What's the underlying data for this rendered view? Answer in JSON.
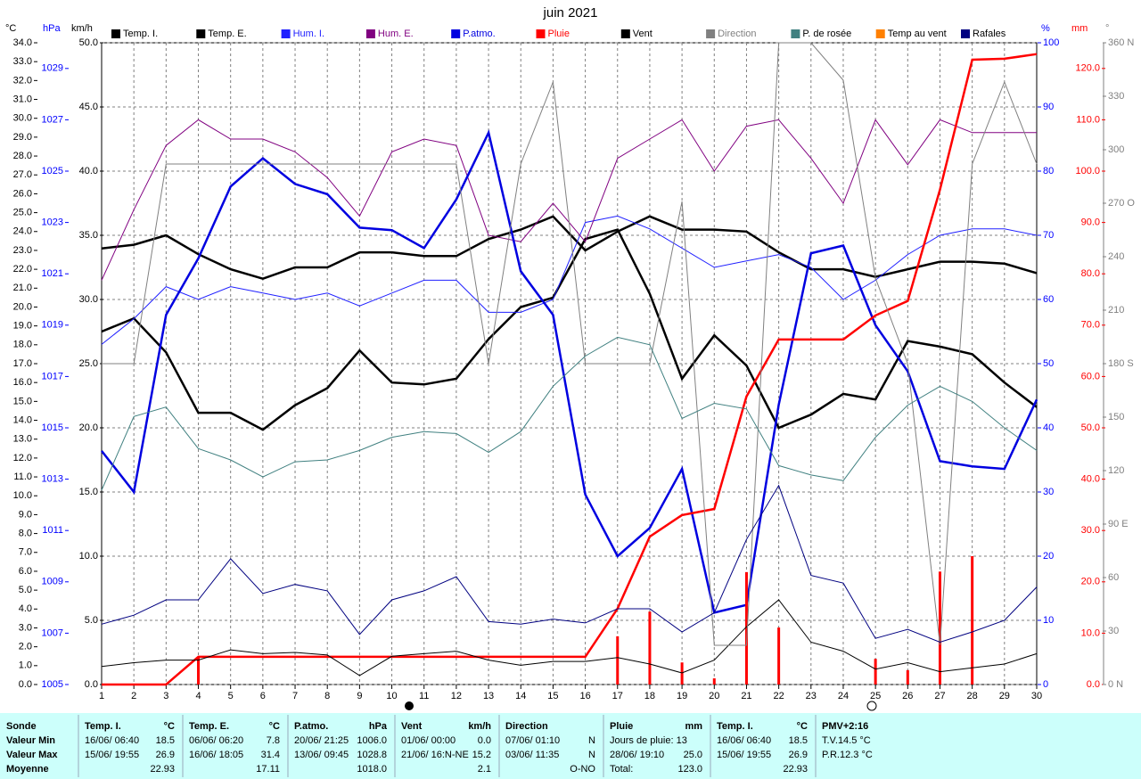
{
  "chart_data": {
    "type": "line",
    "title": "juin 2021",
    "categories": [
      "1",
      "2",
      "3",
      "4",
      "5",
      "6",
      "7",
      "8",
      "9",
      "10",
      "11",
      "12",
      "13",
      "14",
      "15",
      "16",
      "17",
      "18",
      "19",
      "20",
      "21",
      "22",
      "23",
      "24",
      "25",
      "26",
      "27",
      "28",
      "29",
      "30"
    ],
    "grid": true,
    "axes": {
      "temp": {
        "label": "°C",
        "color": "#000000",
        "lim": [
          0,
          34
        ],
        "ticks": [
          {
            "value": 0,
            "label": "0.0"
          },
          {
            "value": 1,
            "label": "1.0"
          },
          {
            "value": 2,
            "label": "2.0"
          },
          {
            "value": 3,
            "label": "3.0"
          },
          {
            "value": 4,
            "label": "4.0"
          },
          {
            "value": 5,
            "label": "5.0"
          },
          {
            "value": 6,
            "label": "6.0"
          },
          {
            "value": 7,
            "label": "7.0"
          },
          {
            "value": 8,
            "label": "8.0"
          },
          {
            "value": 9,
            "label": "9.0"
          },
          {
            "value": 10,
            "label": "10.0"
          },
          {
            "value": 11,
            "label": "11.0"
          },
          {
            "value": 12,
            "label": "12.0"
          },
          {
            "value": 13,
            "label": "13.0"
          },
          {
            "value": 14,
            "label": "14.0"
          },
          {
            "value": 15,
            "label": "15.0"
          },
          {
            "value": 16,
            "label": "16.0"
          },
          {
            "value": 17,
            "label": "17.0"
          },
          {
            "value": 18,
            "label": "18.0"
          },
          {
            "value": 19,
            "label": "19.0"
          },
          {
            "value": 20,
            "label": "20.0"
          },
          {
            "value": 21,
            "label": "21.0"
          },
          {
            "value": 22,
            "label": "22.0"
          },
          {
            "value": 23,
            "label": "23.0"
          },
          {
            "value": 24,
            "label": "24.0"
          },
          {
            "value": 25,
            "label": "25.0"
          },
          {
            "value": 26,
            "label": "26.0"
          },
          {
            "value": 27,
            "label": "27.0"
          },
          {
            "value": 28,
            "label": "28.0"
          },
          {
            "value": 29,
            "label": "29.0"
          },
          {
            "value": 30,
            "label": "30.0"
          },
          {
            "value": 31,
            "label": "31.0"
          },
          {
            "value": 32,
            "label": "32.0"
          },
          {
            "value": 33,
            "label": "33.0"
          },
          {
            "value": 34,
            "label": "34.0"
          }
        ]
      },
      "hpa": {
        "label": "hPa",
        "color": "#0000ff",
        "lim": [
          1005,
          1030
        ],
        "ticks": [
          1005,
          1007,
          1009,
          1011,
          1013,
          1015,
          1017,
          1019,
          1021,
          1023,
          1025,
          1027,
          1029
        ]
      },
      "kmh": {
        "label": "km/h",
        "color": "#000000",
        "lim": [
          0,
          50
        ],
        "ticks": [
          {
            "value": 0,
            "label": "0.0"
          },
          {
            "value": 5,
            "label": "5.0"
          },
          {
            "value": 10,
            "label": "10.0"
          },
          {
            "value": 15,
            "label": "15.0"
          },
          {
            "value": 20,
            "label": "20.0"
          },
          {
            "value": 25,
            "label": "25.0"
          },
          {
            "value": 30,
            "label": "30.0"
          },
          {
            "value": 35,
            "label": "35.0"
          },
          {
            "value": 40,
            "label": "40.0"
          },
          {
            "value": 45,
            "label": "45.0"
          },
          {
            "value": 50,
            "label": "50.0"
          }
        ]
      },
      "pct": {
        "label": "%",
        "color": "#0000ff",
        "lim": [
          0,
          100
        ],
        "ticks": [
          0,
          10,
          20,
          30,
          40,
          50,
          60,
          70,
          80,
          90,
          100
        ]
      },
      "mm": {
        "label": "mm",
        "color": "#ff0000",
        "lim": [
          0,
          125
        ],
        "ticks": [
          {
            "value": 0,
            "label": "0.0"
          },
          {
            "value": 10,
            "label": "10.0"
          },
          {
            "value": 20,
            "label": "20.0"
          },
          {
            "value": 30,
            "label": "30.0"
          },
          {
            "value": 40,
            "label": "40.0"
          },
          {
            "value": 50,
            "label": "50.0"
          },
          {
            "value": 60,
            "label": "60.0"
          },
          {
            "value": 70,
            "label": "70.0"
          },
          {
            "value": 80,
            "label": "80.0"
          },
          {
            "value": 90,
            "label": "90.0"
          },
          {
            "value": 100,
            "label": "100.0"
          },
          {
            "value": 110,
            "label": "110.0"
          },
          {
            "value": 120,
            "label": "120.0"
          }
        ]
      },
      "dir": {
        "label": "°",
        "color": "#808080",
        "lim": [
          0,
          360
        ],
        "ticks": [
          {
            "value": 0,
            "label": "0 N"
          },
          30,
          60,
          {
            "value": 90,
            "label": "90 E"
          },
          120,
          150,
          {
            "value": 180,
            "label": "180 S"
          },
          210,
          240,
          {
            "value": 270,
            "label": "270 O"
          },
          300,
          330,
          {
            "value": 360,
            "label": "360 N"
          }
        ]
      }
    },
    "series": [
      {
        "name": "Temp. I.",
        "color": "#000000",
        "axis": "temp",
        "values": [
          23.1,
          23.3,
          23.8,
          22.8,
          22.0,
          21.5,
          22.1,
          22.1,
          22.9,
          22.9,
          22.7,
          22.7,
          23.6,
          24.1,
          24.8,
          23.0,
          24.0,
          24.8,
          24.1,
          24.1,
          24.0,
          22.9,
          22.0,
          22.0,
          21.6,
          22.0,
          22.4,
          22.4,
          22.3,
          21.8
        ]
      },
      {
        "name": "Temp. E.",
        "color": "#000000",
        "axis": "temp",
        "values": [
          18.7,
          19.4,
          17.6,
          14.4,
          14.4,
          13.5,
          14.8,
          15.7,
          17.7,
          16.0,
          15.9,
          16.2,
          18.3,
          20.0,
          20.5,
          23.6,
          24.1,
          20.7,
          16.2,
          18.5,
          16.9,
          13.6,
          14.3,
          15.4,
          15.1,
          18.2,
          17.9,
          17.5,
          16.0,
          14.7
        ]
      },
      {
        "name": "Hum. I.",
        "color": "#2020ff",
        "axis": "pct",
        "values": [
          53,
          57,
          62,
          60,
          62,
          61,
          60,
          61,
          59,
          61,
          63,
          63,
          58,
          58,
          60,
          72,
          73,
          71,
          68,
          65,
          66,
          67,
          65,
          60,
          63,
          67,
          70,
          71,
          71,
          70
        ]
      },
      {
        "name": "Hum. E.",
        "color": "#800080",
        "axis": "pct",
        "values": [
          63,
          74,
          84,
          88,
          85,
          85,
          83,
          79,
          73,
          83,
          85,
          84,
          70,
          69,
          75,
          69,
          82,
          85,
          88,
          80,
          87,
          88,
          82,
          75,
          88,
          81,
          88,
          86,
          86,
          86
        ]
      },
      {
        "name": "P.atmo.",
        "color": "#0000e0",
        "axis": "hpa",
        "values": [
          1014.1,
          1012.5,
          1019.4,
          1021.6,
          1024.4,
          1025.5,
          1024.5,
          1024.1,
          1022.8,
          1022.7,
          1022.0,
          1023.9,
          1026.5,
          1021.1,
          1019.4,
          1012.4,
          1010.0,
          1011.1,
          1013.4,
          1007.8,
          1008.1,
          1015.9,
          1021.8,
          1022.1,
          1019.0,
          1017.2,
          1013.7,
          1013.5,
          1013.4,
          1016.1
        ]
      },
      {
        "name": "Pluie",
        "color": "#ff0000",
        "axis": "mm",
        "values": [
          0,
          0,
          0,
          5.4,
          5.4,
          5.4,
          5.4,
          5.4,
          5.4,
          5.4,
          5.4,
          5.4,
          5.4,
          5.4,
          5.4,
          5.4,
          14.8,
          28.8,
          33.0,
          34.2,
          56.1,
          67.2,
          67.2,
          67.2,
          71.9,
          74.7,
          96.4,
          121.7,
          121.9,
          122.8
        ],
        "daily": [
          0,
          0,
          0,
          5.4,
          0,
          0,
          0,
          0,
          0,
          0,
          0,
          0,
          0,
          0,
          0,
          0,
          9.4,
          14.2,
          4.3,
          1.2,
          21.9,
          11.1,
          0,
          0,
          5.0,
          2.8,
          22.0,
          25.0,
          0,
          0
        ]
      },
      {
        "name": "Vent",
        "color": "#000000",
        "axis": "kmh",
        "values": [
          1.4,
          1.7,
          1.9,
          1.9,
          2.7,
          2.4,
          2.5,
          2.3,
          0.7,
          2.2,
          2.4,
          2.6,
          1.9,
          1.5,
          1.8,
          1.8,
          2.1,
          1.6,
          0.9,
          1.9,
          4.5,
          6.6,
          3.3,
          2.6,
          1.2,
          1.7,
          1.0,
          1.3,
          1.6,
          2.4
        ]
      },
      {
        "name": "Direction",
        "color": "#808080",
        "axis": "dir",
        "values": [
          180,
          180,
          292,
          292,
          292,
          292,
          292,
          292,
          292,
          292,
          292,
          292,
          180,
          292,
          338,
          180,
          180,
          180,
          271,
          22,
          22,
          360,
          360,
          339,
          228,
          180,
          22,
          292,
          338,
          292
        ]
      },
      {
        "name": "P. de rosée",
        "color": "#408080",
        "axis": "temp",
        "values": [
          10.3,
          14.2,
          14.7,
          12.5,
          11.9,
          11.0,
          11.8,
          11.9,
          12.4,
          13.1,
          13.4,
          13.3,
          12.3,
          13.4,
          15.8,
          17.4,
          18.4,
          18.0,
          14.1,
          14.9,
          14.6,
          11.6,
          11.1,
          10.8,
          13.1,
          14.8,
          15.8,
          15.0,
          13.6,
          12.4
        ]
      },
      {
        "name": "Temp au vent",
        "color": "#ff8000"
      },
      {
        "name": "Rafales",
        "color": "#000080",
        "axis": "kmh",
        "values": [
          4.7,
          5.4,
          6.6,
          6.6,
          9.8,
          7.1,
          7.8,
          7.3,
          3.9,
          6.6,
          7.3,
          8.4,
          4.9,
          4.7,
          5.1,
          4.8,
          5.9,
          5.9,
          4.1,
          5.6,
          11.3,
          15.5,
          8.5,
          7.9,
          3.6,
          4.3,
          3.3,
          4.1,
          5.0,
          7.6
        ]
      }
    ]
  },
  "table": {
    "columns": [
      {
        "title": "Sonde",
        "rows": [
          {
            "l": "Valeur Min"
          },
          {
            "l": "Valeur Max"
          },
          {
            "l": "Moyenne"
          }
        ]
      },
      {
        "title": "Temp. I.",
        "unit": "°C",
        "rows": [
          {
            "l": "16/06/ 06:40",
            "r": "18.5"
          },
          {
            "l": "15/06/ 19:55",
            "r": "26.9"
          },
          {
            "r": "22.93"
          }
        ]
      },
      {
        "title": "Temp. E.",
        "unit": "°C",
        "rows": [
          {
            "l": "06/06/ 06:20",
            "r": "7.8"
          },
          {
            "l": "16/06/ 18:05",
            "r": "31.4"
          },
          {
            "r": "17.11"
          }
        ]
      },
      {
        "title": "P.atmo.",
        "unit": "hPa",
        "rows": [
          {
            "l": "20/06/ 21:25",
            "r": "1006.0"
          },
          {
            "l": "13/06/ 09:45",
            "r": "1028.8"
          },
          {
            "r": "1018.0"
          }
        ]
      },
      {
        "title": "Vent",
        "unit": "km/h",
        "rows": [
          {
            "l": "01/06/ 00:00",
            "r": "0.0"
          },
          {
            "l": "21/06/ 16:N-NE",
            "r": "15.2"
          },
          {
            "r": "2.1"
          }
        ]
      },
      {
        "title": "Direction",
        "rows": [
          {
            "l": "07/06/ 01:10",
            "r": "N"
          },
          {
            "l": "03/06/ 11:35",
            "r": "N"
          },
          {
            "r": "O-NO"
          }
        ]
      },
      {
        "title": "Pluie",
        "unit": "mm",
        "rows": [
          {
            "l": "Jours de pluie: 13"
          },
          {
            "l": "28/06/ 19:10",
            "r": "25.0"
          },
          {
            "l": "Total:",
            "r": "123.0"
          }
        ]
      },
      {
        "title": "Temp. I.",
        "unit": "°C",
        "rows": [
          {
            "l": "16/06/ 06:40",
            "r": "18.5"
          },
          {
            "l": "15/06/ 19:55",
            "r": "26.9"
          },
          {
            "r": "22.93"
          }
        ]
      },
      {
        "title": "PMV+2:16",
        "rows": [
          {
            "l": "T.V.14.5 °C"
          },
          {
            "l": "P.R.12.3 °C"
          }
        ]
      }
    ]
  }
}
